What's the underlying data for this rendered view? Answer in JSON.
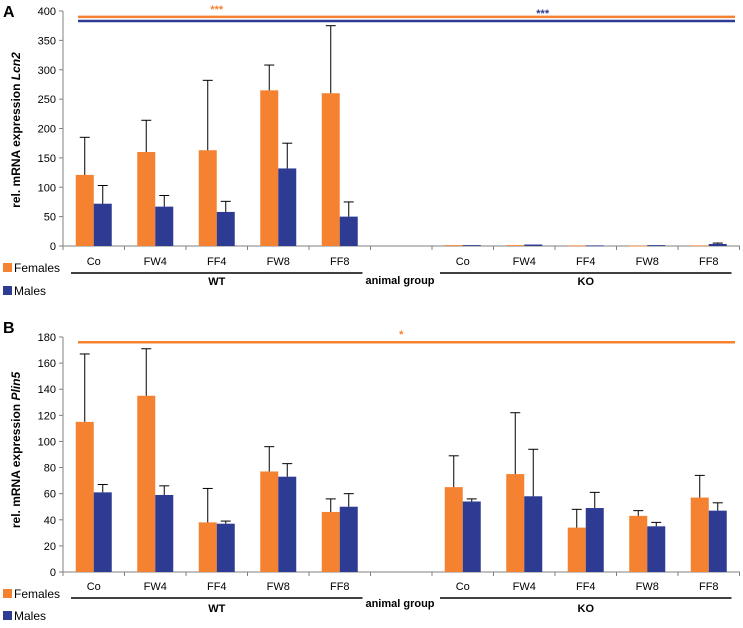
{
  "colors": {
    "females": "#F58231",
    "males": "#2E3B92",
    "axis": "#808080",
    "text": "#000000"
  },
  "chart_data": [
    {
      "panel": "A",
      "type": "bar",
      "ylabel_prefix": "rel. mRNA expression ",
      "ylabel_gene": "Lcn2",
      "xlabel": "animal group",
      "ylim": [
        0,
        400
      ],
      "yticks": [
        0,
        50,
        100,
        150,
        200,
        250,
        300,
        350,
        400
      ],
      "categories": [
        "Co",
        "FW4",
        "FF4",
        "FW8",
        "FF8",
        "",
        "Co",
        "FW4",
        "FF4",
        "FW8",
        "FF8"
      ],
      "groups": [
        {
          "label": "WT",
          "from": 0,
          "to": 4
        },
        {
          "label": "KO",
          "from": 6,
          "to": 10
        }
      ],
      "series": [
        {
          "name": "Females",
          "key": "females",
          "values": [
            121,
            160,
            163,
            265,
            260,
            null,
            1.5,
            1.5,
            1,
            0.5,
            1
          ],
          "errors": [
            64,
            54,
            119,
            43,
            115,
            null,
            0,
            0,
            0,
            0,
            0
          ]
        },
        {
          "name": "Males",
          "key": "males",
          "values": [
            72,
            67,
            58,
            132,
            50,
            null,
            1.5,
            2.5,
            1,
            1.5,
            3.5
          ],
          "errors": [
            31,
            19,
            18,
            43,
            25,
            null,
            0,
            0,
            0,
            0,
            1.5
          ]
        }
      ],
      "significance": [
        {
          "label": "***",
          "key": "females",
          "value": 390,
          "x_from": 0,
          "x_to": 10,
          "label_at": 2
        },
        {
          "label": "***",
          "key": "males",
          "value": 383,
          "x_from": 0,
          "x_to": 10,
          "label_at": 7.3
        }
      ]
    },
    {
      "panel": "B",
      "type": "bar",
      "ylabel_prefix": "rel. mRNA expression ",
      "ylabel_gene": "Plin5",
      "xlabel": "animal group",
      "ylim": [
        0,
        180
      ],
      "yticks": [
        0,
        20,
        40,
        60,
        80,
        100,
        120,
        140,
        160,
        180
      ],
      "categories": [
        "Co",
        "FW4",
        "FF4",
        "FW8",
        "FF8",
        "",
        "Co",
        "FW4",
        "FF4",
        "FW8",
        "FF8"
      ],
      "groups": [
        {
          "label": "WT",
          "from": 0,
          "to": 4
        },
        {
          "label": "KO",
          "from": 6,
          "to": 10
        }
      ],
      "series": [
        {
          "name": "Females",
          "key": "females",
          "values": [
            115,
            135,
            38,
            77,
            46,
            null,
            65,
            75,
            34,
            43,
            57
          ],
          "errors": [
            52,
            36,
            26,
            19,
            10,
            null,
            24,
            47,
            14,
            4,
            17
          ]
        },
        {
          "name": "Males",
          "key": "males",
          "values": [
            61,
            59,
            37,
            73,
            50,
            null,
            54,
            58,
            49,
            35,
            47
          ],
          "errors": [
            6,
            7,
            2,
            10,
            10,
            null,
            2,
            36,
            12,
            3,
            6
          ]
        }
      ],
      "significance": [
        {
          "label": "*",
          "key": "females",
          "value": 176,
          "x_from": 0,
          "x_to": 10,
          "label_at": 5
        }
      ]
    }
  ],
  "legend": {
    "females": "Females",
    "males": "Males"
  }
}
